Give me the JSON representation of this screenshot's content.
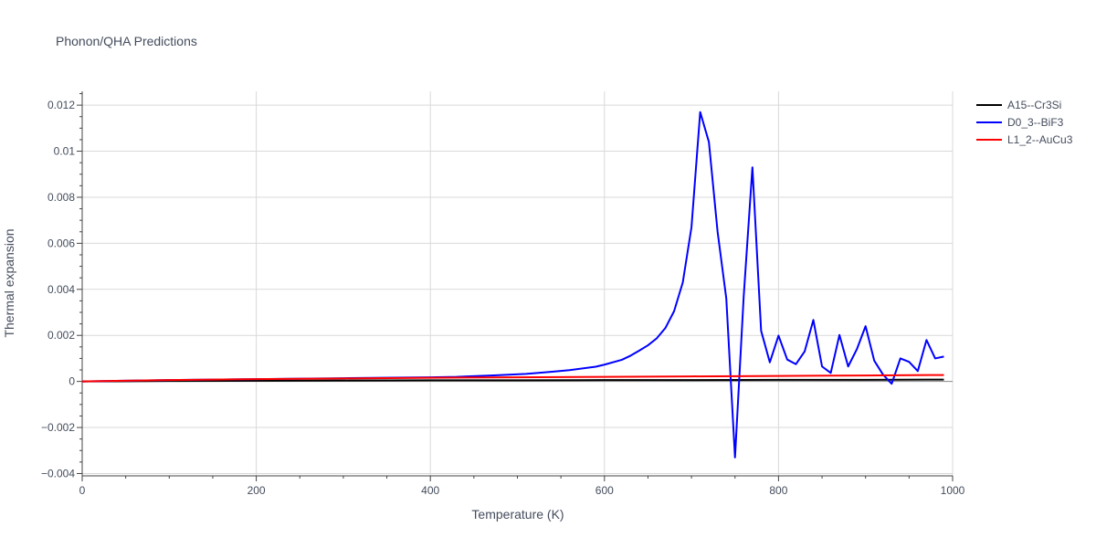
{
  "chart_data": {
    "type": "line",
    "title": "Phonon/QHA Predictions",
    "xlabel": "Temperature (K)",
    "ylabel": "Thermal expansion",
    "xlim": [
      0,
      1000
    ],
    "ylim": [
      -0.0041,
      0.0126
    ],
    "x_ticks": [
      0,
      200,
      400,
      600,
      800,
      1000
    ],
    "x_tick_labels": [
      "0",
      "200",
      "400",
      "600",
      "800",
      "1000"
    ],
    "y_ticks": [
      -0.004,
      -0.002,
      0,
      0.002,
      0.004,
      0.006,
      0.008,
      0.01,
      0.012
    ],
    "y_tick_labels": [
      "−0.004",
      "−0.002",
      "0",
      "0.002",
      "0.004",
      "0.006",
      "0.008",
      "0.01",
      "0.012"
    ],
    "grid": true,
    "legend_position": "top-right",
    "series": [
      {
        "name": "A15--Cr3Si",
        "color": "#000000",
        "x": [
          0,
          100,
          200,
          300,
          400,
          500,
          600,
          700,
          800,
          900,
          990
        ],
        "y": [
          0,
          2e-05,
          3e-05,
          4e-05,
          5e-05,
          5e-05,
          6e-05,
          6e-05,
          7e-05,
          7e-05,
          8e-05
        ]
      },
      {
        "name": "D0_3--BiF3",
        "color": "#0000ff",
        "x": [
          0,
          100,
          200,
          300,
          400,
          430,
          470,
          510,
          540,
          560,
          590,
          600,
          620,
          630,
          640,
          650,
          660,
          670,
          680,
          690,
          700,
          710,
          720,
          730,
          740,
          750,
          760,
          770,
          780,
          790,
          800,
          810,
          820,
          830,
          840,
          850,
          860,
          870,
          880,
          890,
          900,
          910,
          920,
          930,
          940,
          950,
          960,
          970,
          980,
          990
        ],
        "y": [
          0,
          6e-05,
          0.0001,
          0.00014,
          0.00018,
          0.0002,
          0.00026,
          0.00033,
          0.00042,
          0.00049,
          0.00064,
          0.00073,
          0.00094,
          0.00112,
          0.00134,
          0.00157,
          0.00187,
          0.00232,
          0.00305,
          0.0043,
          0.0067,
          0.0117,
          0.0104,
          0.0065,
          0.0036,
          -0.0033,
          0.0037,
          0.0093,
          0.0022,
          0.00083,
          0.00199,
          0.00095,
          0.00075,
          0.0013,
          0.00267,
          0.00065,
          0.00037,
          0.00202,
          0.00065,
          0.0014,
          0.0024,
          0.0009,
          0.0003,
          -0.0001,
          0.001,
          0.00085,
          0.00045,
          0.0018,
          0.001,
          0.00108
        ]
      },
      {
        "name": "L1_2--AuCu3",
        "color": "#ff0000",
        "x": [
          0,
          100,
          200,
          300,
          400,
          500,
          600,
          700,
          800,
          900,
          990
        ],
        "y": [
          0,
          6e-05,
          0.0001,
          0.00013,
          0.00016,
          0.00018,
          0.0002,
          0.00022,
          0.00024,
          0.00026,
          0.00028
        ]
      }
    ]
  }
}
